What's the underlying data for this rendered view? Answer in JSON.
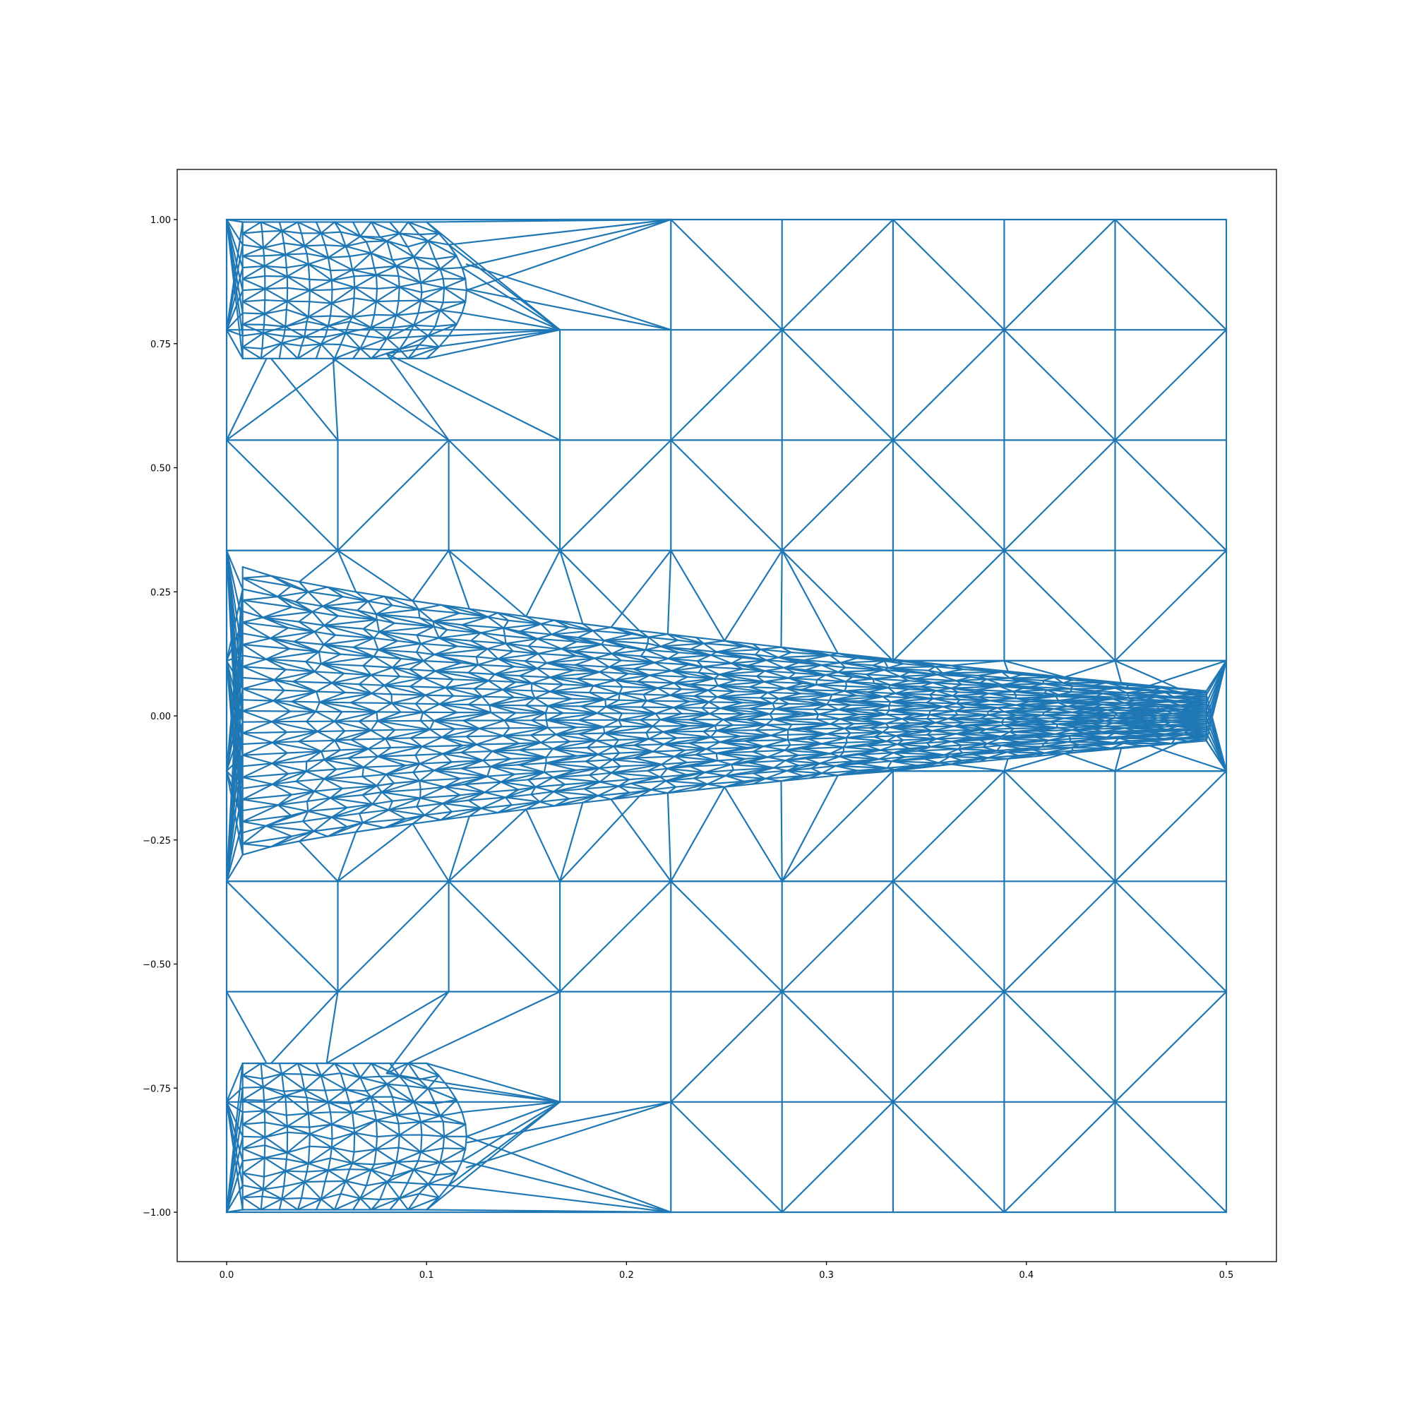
{
  "chart_data": {
    "type": "triangular-mesh",
    "title": "",
    "xlabel": "",
    "ylabel": "",
    "xlim": [
      -0.025,
      0.525
    ],
    "ylim": [
      -1.1,
      1.1
    ],
    "grid": false,
    "color": "#1f77b4",
    "x_ticks": [
      0.0,
      0.1,
      0.2,
      0.3,
      0.4,
      0.5
    ],
    "x_tick_labels": [
      "0.0",
      "0.1",
      "0.2",
      "0.3",
      "0.4",
      "0.5"
    ],
    "y_ticks": [
      1.0,
      0.75,
      0.5,
      0.25,
      0.0,
      -0.25,
      -0.5,
      -0.75,
      -1.0
    ],
    "y_tick_labels": [
      "1.00",
      "0.75",
      "0.50",
      "0.25",
      "0.00",
      "−0.25",
      "−0.50",
      "−0.75",
      "−1.00"
    ],
    "domain": {
      "x": [
        0.0,
        0.5
      ],
      "y": [
        -1.0,
        1.0
      ]
    },
    "coarse_grid": {
      "x_nodes": [
        0.0,
        0.0556,
        0.1111,
        0.1667,
        0.2222,
        0.2778,
        0.3333,
        0.3889,
        0.4444,
        0.5
      ],
      "y_nodes": [
        1.0,
        0.7778,
        0.5556,
        0.3333,
        0.1111,
        -0.1111,
        -0.3333,
        -0.5556,
        -0.7778,
        -1.0
      ]
    },
    "refined_regions": [
      {
        "x": [
          0.0,
          0.12
        ],
        "y": [
          0.72,
          1.0
        ],
        "fan_nodes": [
          [
            0.0,
            1.0
          ],
          [
            0.0,
            0.7778
          ],
          [
            0.1667,
            0.7778
          ],
          [
            0.1667,
            1.0
          ],
          [
            0.2222,
            1.0
          ],
          [
            0.2222,
            0.7778
          ]
        ]
      },
      {
        "x": [
          0.0,
          0.12
        ],
        "y": [
          -1.0,
          -0.7
        ],
        "fan_nodes": [
          [
            0.0,
            -1.0
          ],
          [
            0.0,
            -0.7778
          ],
          [
            0.1667,
            -0.7778
          ],
          [
            0.1667,
            -1.0
          ],
          [
            0.2222,
            -0.7778
          ],
          [
            0.2222,
            -1.0
          ]
        ]
      },
      {
        "x": [
          0.0,
          0.5
        ],
        "y": [
          -0.27,
          0.3
        ],
        "taper_to_x": 0.5,
        "taper_y": [
          -0.05,
          0.05
        ]
      }
    ]
  }
}
